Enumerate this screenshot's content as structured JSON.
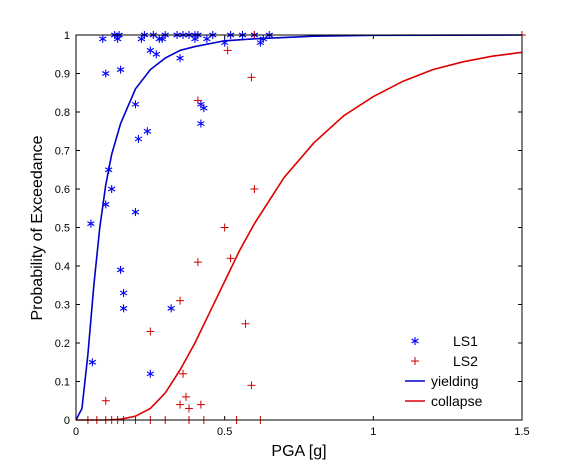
{
  "chart_data": {
    "type": "scatter",
    "title": "",
    "xlabel": "PGA [g]",
    "ylabel": "Probability of Exceedance",
    "xlim": [
      0,
      1.5
    ],
    "ylim": [
      0,
      1
    ],
    "xticks": [
      0,
      0.5,
      1,
      1.5
    ],
    "xtick_labels": [
      "0",
      "0.5",
      "1",
      "1.5"
    ],
    "yticks": [
      0,
      0.1,
      0.2,
      0.3,
      0.4,
      0.5,
      0.6,
      0.7,
      0.8,
      0.9,
      1
    ],
    "ytick_labels": [
      "0",
      "0.1",
      "0.2",
      "0.3",
      "0.4",
      "0.5",
      "0.6",
      "0.7",
      "0.8",
      "0.9",
      "1"
    ],
    "grid": false,
    "legend_position": "bottom-right",
    "series": [
      {
        "name": "LS1",
        "kind": "scatter",
        "marker": "asterisk",
        "color": "#0000ff",
        "points": [
          [
            0.05,
            0.51
          ],
          [
            0.055,
            0.15
          ],
          [
            0.09,
            0.99
          ],
          [
            0.1,
            0.56
          ],
          [
            0.1,
            0.9
          ],
          [
            0.11,
            0.65
          ],
          [
            0.12,
            0.6
          ],
          [
            0.13,
            1.0
          ],
          [
            0.14,
            0.99
          ],
          [
            0.145,
            1.0
          ],
          [
            0.15,
            0.91
          ],
          [
            0.15,
            0.39
          ],
          [
            0.16,
            0.33
          ],
          [
            0.16,
            0.29
          ],
          [
            0.2,
            0.82
          ],
          [
            0.2,
            0.54
          ],
          [
            0.21,
            0.73
          ],
          [
            0.22,
            0.99
          ],
          [
            0.23,
            1.0
          ],
          [
            0.24,
            0.75
          ],
          [
            0.25,
            0.96
          ],
          [
            0.25,
            0.12
          ],
          [
            0.26,
            1.0
          ],
          [
            0.27,
            0.95
          ],
          [
            0.28,
            0.99
          ],
          [
            0.29,
            0.99
          ],
          [
            0.3,
            1.0
          ],
          [
            0.32,
            0.29
          ],
          [
            0.34,
            1.0
          ],
          [
            0.35,
            0.94
          ],
          [
            0.36,
            1.0
          ],
          [
            0.38,
            1.0
          ],
          [
            0.4,
            1.0
          ],
          [
            0.4,
            0.99
          ],
          [
            0.41,
            1.0
          ],
          [
            0.42,
            0.82
          ],
          [
            0.42,
            0.77
          ],
          [
            0.43,
            0.81
          ],
          [
            0.44,
            0.99
          ],
          [
            0.46,
            1.0
          ],
          [
            0.5,
            0.98
          ],
          [
            0.52,
            1.0
          ],
          [
            0.56,
            1.0
          ],
          [
            0.6,
            1.0
          ],
          [
            0.62,
            0.98
          ],
          [
            0.63,
            0.99
          ],
          [
            0.65,
            1.0
          ]
        ]
      },
      {
        "name": "LS2",
        "kind": "scatter",
        "marker": "plus",
        "color": "#cc0000",
        "points": [
          [
            0.04,
            0.0
          ],
          [
            0.07,
            0.0
          ],
          [
            0.1,
            0.0
          ],
          [
            0.1,
            0.05
          ],
          [
            0.12,
            0.0
          ],
          [
            0.14,
            0.0
          ],
          [
            0.16,
            0.0
          ],
          [
            0.2,
            0.0
          ],
          [
            0.25,
            0.0
          ],
          [
            0.25,
            0.23
          ],
          [
            0.3,
            0.0
          ],
          [
            0.35,
            0.04
          ],
          [
            0.35,
            0.31
          ],
          [
            0.36,
            0.12
          ],
          [
            0.37,
            0.06
          ],
          [
            0.38,
            0.0
          ],
          [
            0.38,
            0.03
          ],
          [
            0.41,
            0.41
          ],
          [
            0.41,
            0.83
          ],
          [
            0.42,
            0.04
          ],
          [
            0.43,
            0.0
          ],
          [
            0.5,
            0.5
          ],
          [
            0.51,
            0.96
          ],
          [
            0.52,
            0.42
          ],
          [
            0.54,
            0.0
          ],
          [
            0.57,
            0.25
          ],
          [
            0.59,
            0.09
          ],
          [
            0.59,
            0.89
          ],
          [
            0.6,
            1.0
          ],
          [
            0.6,
            0.6
          ],
          [
            0.62,
            0.0
          ],
          [
            1.5,
            1.0
          ]
        ]
      },
      {
        "name": "yielding",
        "kind": "line",
        "color": "#0000cc",
        "x": [
          0,
          0.02,
          0.04,
          0.06,
          0.08,
          0.1,
          0.12,
          0.15,
          0.2,
          0.25,
          0.3,
          0.35,
          0.4,
          0.5,
          0.6,
          0.8,
          1.0,
          1.5
        ],
        "y": [
          0,
          0.03,
          0.17,
          0.35,
          0.5,
          0.61,
          0.69,
          0.77,
          0.86,
          0.91,
          0.94,
          0.96,
          0.97,
          0.985,
          0.99,
          0.997,
          0.999,
          1.0
        ]
      },
      {
        "name": "collapse",
        "kind": "line",
        "color": "#dd0000",
        "x": [
          0,
          0.1,
          0.15,
          0.2,
          0.25,
          0.3,
          0.35,
          0.4,
          0.45,
          0.5,
          0.55,
          0.6,
          0.7,
          0.8,
          0.9,
          1.0,
          1.1,
          1.2,
          1.3,
          1.4,
          1.5
        ],
        "y": [
          0,
          0,
          0.002,
          0.01,
          0.03,
          0.07,
          0.13,
          0.2,
          0.28,
          0.36,
          0.44,
          0.51,
          0.63,
          0.72,
          0.79,
          0.84,
          0.88,
          0.91,
          0.93,
          0.945,
          0.955
        ]
      }
    ]
  }
}
